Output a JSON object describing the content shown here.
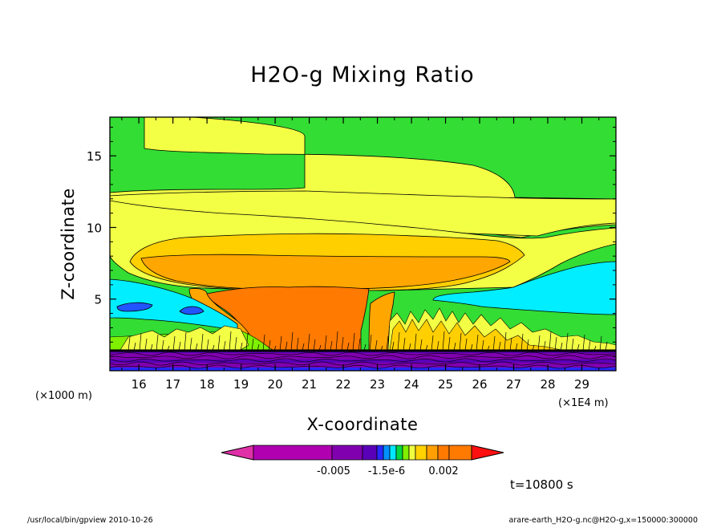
{
  "chart_data": {
    "type": "heatmap",
    "title": "H2O-g Mixing Ratio",
    "xlabel": "X-coordinate",
    "ylabel": "Z-coordinate",
    "x_unit_left": "(×1000 m)",
    "x_unit_right": "(×1E4 m)",
    "xlim": [
      15.15,
      30.0
    ],
    "ylim": [
      0.0,
      17.7
    ],
    "x_ticks": [
      16,
      17,
      18,
      19,
      20,
      21,
      22,
      23,
      24,
      25,
      26,
      27,
      28,
      29
    ],
    "y_ticks": [
      5,
      10,
      15
    ],
    "contour_levels_labeled": [
      "-0.005",
      "-1.5e-6",
      "0.002"
    ],
    "time_label": "t=10800 s",
    "footer_left": "/usr/local/bin/gpview   2010-10-26",
    "footer_right": "arare-earth_H2O-g.nc@H2O-g,x=150000:300000",
    "colorbar_colors": [
      "#e030a8",
      "#b000b0",
      "#8000b0",
      "#5a00b8",
      "#2828ff",
      "#0090ff",
      "#00e8ff",
      "#00d840",
      "#80f000",
      "#f0ff40",
      "#ffd200",
      "#ffa000",
      "#ff7a00",
      "#ff1010"
    ],
    "field_colors": {
      "green": "#33dd33",
      "light_green": "#7ff000",
      "yellow": "#f2ff44",
      "gold": "#ffcf00",
      "orange": "#ffa600",
      "dark_orange": "#ff7a00",
      "cyan": "#00eeff",
      "blue": "#2255ff",
      "dark_blue": "#4400cc",
      "purple": "#8800cc"
    }
  }
}
